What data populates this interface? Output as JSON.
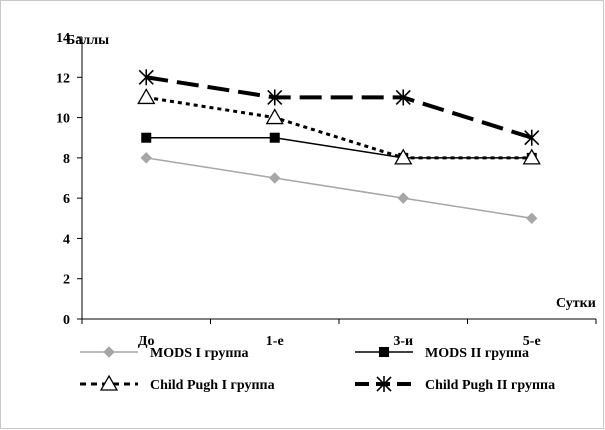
{
  "chart_data": {
    "type": "line",
    "ylabel": "Баллы",
    "xlabel": "Сутки",
    "ylim": [
      0,
      14
    ],
    "yticks": [
      0,
      2,
      4,
      6,
      8,
      10,
      12,
      14
    ],
    "categories": [
      "До",
      "1-е",
      "3-и",
      "5-е"
    ],
    "grid": false,
    "legend_position": "bottom",
    "series": [
      {
        "name": "MODS I группа",
        "values": [
          8,
          7,
          6,
          5
        ],
        "color": "#a6a6a6",
        "marker": "diamond",
        "dash": "solid"
      },
      {
        "name": "MODS II группа",
        "values": [
          9,
          9,
          8,
          8
        ],
        "color": "#000000",
        "marker": "square",
        "dash": "solid"
      },
      {
        "name": "Child Pugh I группа",
        "values": [
          11,
          10,
          8,
          8
        ],
        "color": "#000000",
        "marker": "triangle",
        "dash": "dotted"
      },
      {
        "name": "Child Pugh II группа",
        "values": [
          12,
          11,
          11,
          9
        ],
        "color": "#000000",
        "marker": "asterisk",
        "dash": "longdash"
      }
    ]
  }
}
